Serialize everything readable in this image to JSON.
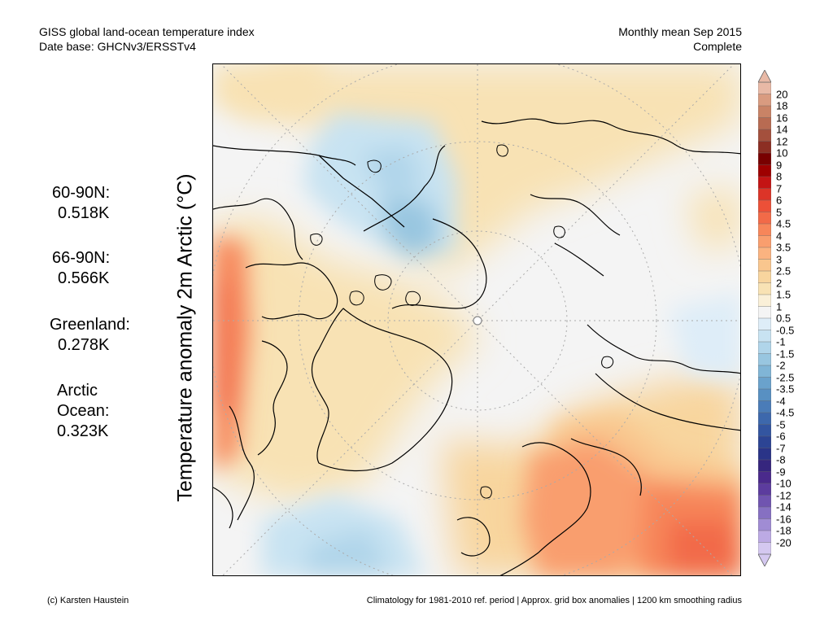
{
  "header": {
    "title_line1": "GISS global land-ocean temperature index",
    "title_line2": "Date base: GHCNv3/ERSSTv4",
    "right_line1": "Monthly mean Sep 2015",
    "right_line2": "Complete"
  },
  "y_axis_label": "Temperature anomaly 2m Arctic (°C)",
  "stats": [
    {
      "label": "60-90N:",
      "value": "0.518K"
    },
    {
      "label": "66-90N:",
      "value": "0.566K"
    },
    {
      "label": "Greenland:",
      "value": "0.278K"
    },
    {
      "label": "Arctic",
      "label2": "Ocean:",
      "value": "0.323K"
    }
  ],
  "colorbar": {
    "labels": [
      "20",
      "18",
      "16",
      "14",
      "12",
      "10",
      "9",
      "8",
      "7",
      "6",
      "5",
      "4.5",
      "4",
      "3.5",
      "3",
      "2.5",
      "2",
      "1.5",
      "1",
      "0.5",
      "-0.5",
      "-1",
      "-1.5",
      "-2",
      "-2.5",
      "-3.5",
      "-4",
      "-4.5",
      "-5",
      "-6",
      "-7",
      "-8",
      "-9",
      "-10",
      "-12",
      "-14",
      "-16",
      "-18",
      "-20"
    ],
    "colors": [
      "#e8b9a6",
      "#d99b80",
      "#c98366",
      "#b86b52",
      "#a4503d",
      "#8c2e23",
      "#780000",
      "#9e0000",
      "#c41414",
      "#dc3428",
      "#ec5038",
      "#f26a48",
      "#f7865a",
      "#f99e6e",
      "#fbb380",
      "#f9c68e",
      "#f8d59e",
      "#f8e2b4",
      "#faf0d8",
      "#f4f4f4",
      "#deedf8",
      "#c8e3f2",
      "#b0d5ea",
      "#98c6e0",
      "#80b5d6",
      "#6aa2cc",
      "#5890c2",
      "#4a7cb8",
      "#3d68ac",
      "#3355a0",
      "#2c4494",
      "#2a3488",
      "#36267e",
      "#4a2a8c",
      "#5c3c9e",
      "#7054b0",
      "#8670c2",
      "#a08cd4",
      "#bcaae4",
      "#d4c8f0"
    ]
  },
  "footer": {
    "left": "(c) Karsten Haustein",
    "right": "Climatology for 1981-2010 ref. period | Approx. grid box anomalies | 1200 km smoothing radius"
  }
}
